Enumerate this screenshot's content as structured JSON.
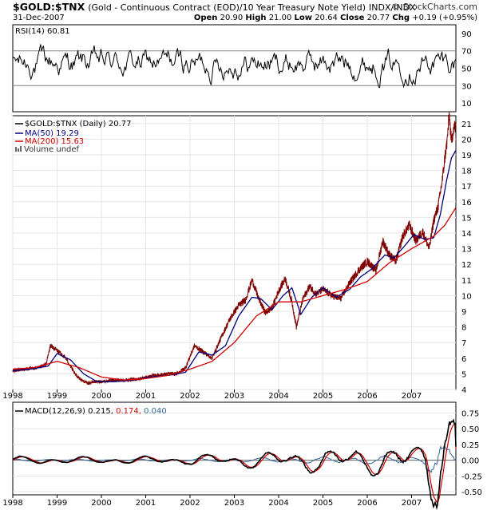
{
  "header": {
    "symbol": "$GOLD:$TNX",
    "description": "(Gold - Continuous Contract (EOD)/10 Year Treasury Note Yield)",
    "exchange": "INDX/INDX",
    "brand": "© StockCharts.com",
    "date": "31-Dec-2007",
    "open_label": "Open",
    "open": "20.90",
    "high_label": "High",
    "high": "21.00",
    "low_label": "Low",
    "low": "20.64",
    "close_label": "Close",
    "close": "20.77",
    "chg_label": "Chg",
    "chg": "+0.19 (+0.95%)"
  },
  "chart_data": [
    {
      "type": "line",
      "title": "RSI(14) 60.81",
      "legend": [
        "RSI(14) 60.81"
      ],
      "ylim": [
        0,
        100
      ],
      "yticks": [
        10,
        30,
        50,
        70,
        90
      ],
      "reference_lines": [
        30,
        70
      ],
      "value": 60.81,
      "colors": {
        "line": "#000000",
        "ref": "#808080"
      }
    },
    {
      "type": "line",
      "title": "$GOLD:$TNX (Daily) 20.77",
      "legend": [
        "$GOLD:$TNX (Daily) 20.77",
        "MA(50) 19.29",
        "MA(200) 15.63",
        "Volume undef"
      ],
      "xlabel": "",
      "ylabel": "",
      "ylim": [
        4,
        21.5
      ],
      "yticks": [
        4,
        5,
        6,
        7,
        8,
        9,
        10,
        11,
        12,
        13,
        14,
        15,
        16,
        17,
        18,
        19,
        20,
        21
      ],
      "x_ticks": [
        "1998",
        "1999",
        "2000",
        "2001",
        "2002",
        "2003",
        "2004",
        "2005",
        "2006",
        "2007"
      ],
      "x_range": [
        1998.0,
        2008.0
      ],
      "series": [
        {
          "name": "$GOLD:$TNX",
          "color": "#800000",
          "x": [
            1998.0,
            1998.3,
            1998.6,
            1998.75,
            1998.85,
            1999.0,
            1999.2,
            1999.4,
            1999.55,
            1999.7,
            1999.85,
            2000.0,
            2000.3,
            2000.6,
            2000.9,
            2001.2,
            2001.5,
            2001.7,
            2001.9,
            2002.1,
            2002.3,
            2002.5,
            2002.7,
            2002.9,
            2003.1,
            2003.25,
            2003.4,
            2003.55,
            2003.7,
            2003.85,
            2004.0,
            2004.15,
            2004.3,
            2004.4,
            2004.55,
            2004.7,
            2004.85,
            2005.0,
            2005.2,
            2005.4,
            2005.6,
            2005.8,
            2006.0,
            2006.2,
            2006.35,
            2006.5,
            2006.65,
            2006.8,
            2006.95,
            2007.1,
            2007.25,
            2007.4,
            2007.5,
            2007.6,
            2007.7,
            2007.75,
            2007.8,
            2007.85,
            2007.9,
            2007.95,
            2008.0
          ],
          "values": [
            5.2,
            5.3,
            5.4,
            5.6,
            6.8,
            6.5,
            6.0,
            5.0,
            4.6,
            4.4,
            4.5,
            4.5,
            4.6,
            4.6,
            4.7,
            4.9,
            5.0,
            5.0,
            5.4,
            6.8,
            6.4,
            6.0,
            7.3,
            8.5,
            9.4,
            9.7,
            11.0,
            9.8,
            8.9,
            9.2,
            10.3,
            11.1,
            9.6,
            8.0,
            9.8,
            10.6,
            10.1,
            10.4,
            10.0,
            9.8,
            10.8,
            11.6,
            12.2,
            11.6,
            13.5,
            12.6,
            12.2,
            13.8,
            14.5,
            13.5,
            14.1,
            13.0,
            14.8,
            15.7,
            17.5,
            18.8,
            19.8,
            21.6,
            19.8,
            20.8,
            20.77
          ]
        },
        {
          "name": "MA(50)",
          "color": "#000080",
          "x": [
            1998.0,
            1998.4,
            1998.8,
            1999.0,
            1999.3,
            1999.6,
            1999.9,
            2000.3,
            2000.7,
            2001.1,
            2001.5,
            2001.9,
            2002.2,
            2002.5,
            2002.8,
            2003.1,
            2003.4,
            2003.6,
            2003.85,
            2004.1,
            2004.3,
            2004.5,
            2004.75,
            2005.0,
            2005.3,
            2005.6,
            2005.85,
            2006.1,
            2006.4,
            2006.6,
            2006.85,
            2007.05,
            2007.3,
            2007.5,
            2007.65,
            2007.8,
            2007.9,
            2008.0
          ],
          "values": [
            5.2,
            5.3,
            5.5,
            6.3,
            5.9,
            5.0,
            4.5,
            4.5,
            4.6,
            4.8,
            4.9,
            5.1,
            6.4,
            6.2,
            6.8,
            8.7,
            9.9,
            9.8,
            9.1,
            10.0,
            10.5,
            8.8,
            9.9,
            10.5,
            9.9,
            10.4,
            11.2,
            11.7,
            12.6,
            12.4,
            13.2,
            13.9,
            13.6,
            13.7,
            15.2,
            17.5,
            18.8,
            19.29
          ]
        },
        {
          "name": "MA(200)",
          "color": "#d00000",
          "x": [
            1998.0,
            1998.5,
            1999.0,
            1999.5,
            2000.0,
            2000.5,
            2001.0,
            2001.5,
            2002.0,
            2002.5,
            2003.0,
            2003.5,
            2004.0,
            2004.5,
            2005.0,
            2005.5,
            2006.0,
            2006.5,
            2007.0,
            2007.5,
            2007.75,
            2008.0
          ],
          "values": [
            5.3,
            5.4,
            5.8,
            5.4,
            4.8,
            4.6,
            4.7,
            4.9,
            5.3,
            5.8,
            7.0,
            8.7,
            9.6,
            9.6,
            10.0,
            10.4,
            10.9,
            12.1,
            13.0,
            13.8,
            14.5,
            15.63
          ]
        }
      ]
    },
    {
      "type": "line",
      "title": "MACD(12,26,9) 0.215, 0.174, 0.040",
      "legend": [
        "MACD(12,26,9) 0.215,",
        "0.174,",
        "0.040"
      ],
      "ylim": [
        -0.55,
        0.92
      ],
      "yticks": [
        -0.5,
        -0.25,
        0.0,
        0.25,
        0.5,
        0.75
      ],
      "ytick_labels": [
        "-0.50",
        "-0.25",
        "0.00",
        "0.25",
        "0.50",
        "0.75"
      ],
      "x_ticks": [
        "1998",
        "1999",
        "2000",
        "2001",
        "2002",
        "2003",
        "2004",
        "2005",
        "2006",
        "2007"
      ],
      "values": {
        "macd": 0.215,
        "signal": 0.174,
        "histogram": 0.04
      },
      "colors": {
        "macd": "#000000",
        "signal": "#d00000",
        "histogram": "#336699"
      }
    }
  ]
}
